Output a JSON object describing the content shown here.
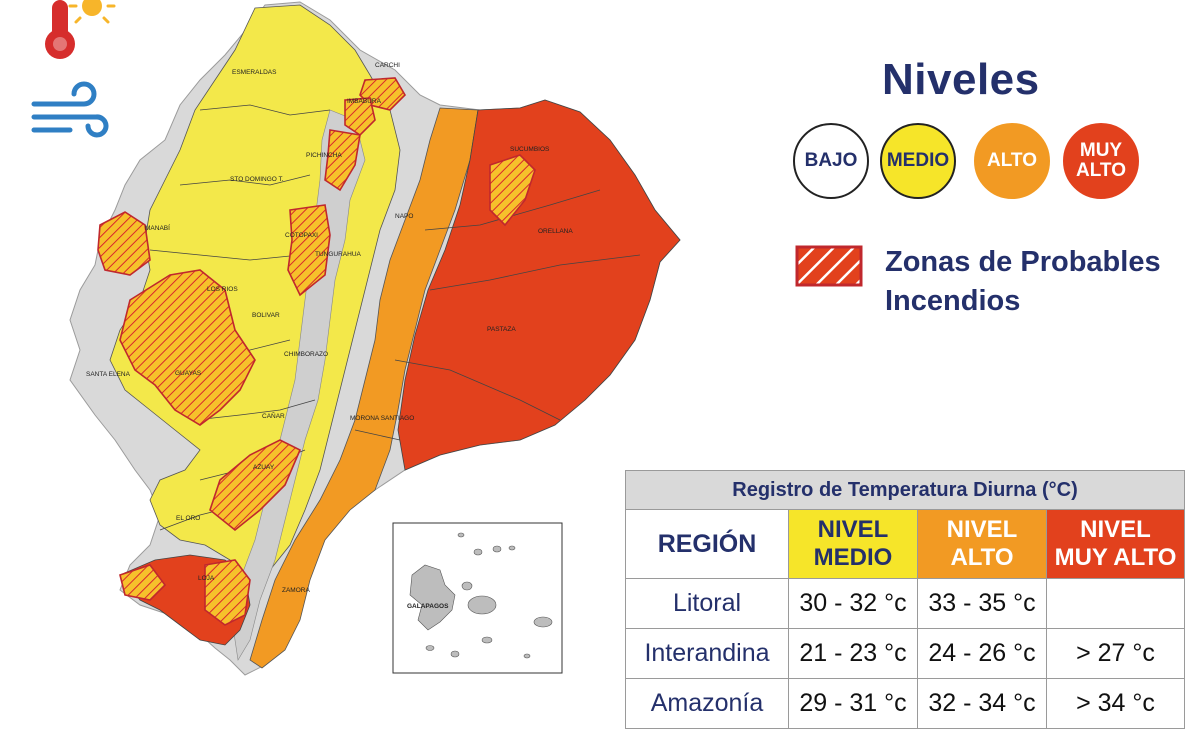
{
  "map": {
    "provinces": [
      {
        "key": "esmeraldas",
        "label": "ESMERALDAS"
      },
      {
        "key": "carchi",
        "label": "CARCHI"
      },
      {
        "key": "imbabura",
        "label": "IMBABURA"
      },
      {
        "key": "sucumbios",
        "label": "SUCUMBIOS"
      },
      {
        "key": "pichincha",
        "label": "PICHINCHA"
      },
      {
        "key": "stodomingo",
        "label": "STO DOMINGO T."
      },
      {
        "key": "manabi",
        "label": "MANABÍ"
      },
      {
        "key": "napo",
        "label": "NAPO"
      },
      {
        "key": "orellana",
        "label": "ORELLANA"
      },
      {
        "key": "cotopaxi",
        "label": "COTOPAXI"
      },
      {
        "key": "tungurahua",
        "label": "TUNGURAHUA"
      },
      {
        "key": "losrios",
        "label": "LOS RIOS"
      },
      {
        "key": "bolivar",
        "label": "BOLIVAR"
      },
      {
        "key": "pastaza",
        "label": "PASTAZA"
      },
      {
        "key": "chimborazo",
        "label": "CHIMBORAZO"
      },
      {
        "key": "guayas",
        "label": "GUAYAS"
      },
      {
        "key": "santaelena",
        "label": "SANTA ELENA"
      },
      {
        "key": "moronasantiago",
        "label": "MORONA SANTIAGO"
      },
      {
        "key": "canar",
        "label": "CAÑAR"
      },
      {
        "key": "azuay",
        "label": "AZUAY"
      },
      {
        "key": "eloro",
        "label": "EL ORO"
      },
      {
        "key": "loja",
        "label": "LOJA"
      },
      {
        "key": "zamora",
        "label": "ZAMORA"
      }
    ],
    "inset_label": "GALAPAGOS"
  },
  "icons": {
    "thermometer": "thermometer-sun-icon",
    "wind": "wind-icon"
  },
  "legend": {
    "title": "Niveles",
    "levels": [
      {
        "line1": "BAJO",
        "line2": "",
        "color": "#ffffff",
        "text_color": "#24306b"
      },
      {
        "line1": "MEDIO",
        "line2": "",
        "color": "#f6e529",
        "text_color": "#24306b"
      },
      {
        "line1": "ALTO",
        "line2": "",
        "color": "#f29a23",
        "text_color": "#ffffff"
      },
      {
        "line1": "MUY",
        "line2": "ALTO",
        "color": "#e2411d",
        "text_color": "#ffffff"
      }
    ],
    "zone_label_line1": "Zonas de Probables",
    "zone_label_line2": "Incendios"
  },
  "table": {
    "title": "Registro de Temperatura Diurna (°C)",
    "headers": {
      "region": "REGIÓN",
      "medio_1": "NIVEL",
      "medio_2": "MEDIO",
      "alto_1": "NIVEL",
      "alto_2": "ALTO",
      "muy_1": "NIVEL",
      "muy_2": "MUY ALTO"
    },
    "rows": [
      {
        "region": "Litoral",
        "medio": "30 - 32 °c",
        "alto": "33 - 35 °c",
        "muy": ""
      },
      {
        "region": "Interandina",
        "medio": "21 - 23 °c",
        "alto": "24 - 26 °c",
        "muy": "> 27 °c"
      },
      {
        "region": "Amazonía",
        "medio": "29 - 31 °c",
        "alto": "32 - 34 °c",
        "muy": "> 34 °c"
      }
    ]
  },
  "colors": {
    "bajo": "#ffffff",
    "medio": "#f6e529",
    "alto": "#f29a23",
    "muy_alto": "#e2411d",
    "navy": "#24306b",
    "zone_outline": "#c0282d"
  }
}
